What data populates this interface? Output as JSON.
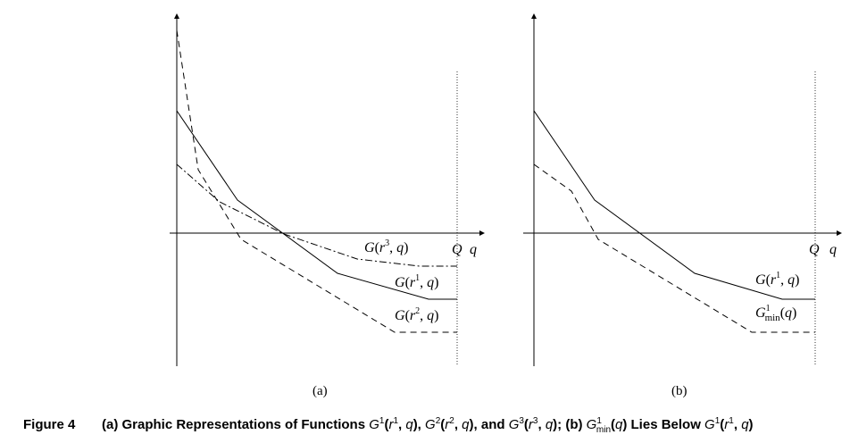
{
  "panels": [
    {
      "id": "a",
      "caption": "(a)",
      "axis_labels": {
        "q": "q",
        "Q": "Q"
      },
      "curve_labels": [
        {
          "key": "g3",
          "text": "G(r³, q)"
        },
        {
          "key": "g1",
          "text": "G(r¹, q)"
        },
        {
          "key": "g2",
          "text": "G(r², q)"
        }
      ]
    },
    {
      "id": "b",
      "caption": "(b)",
      "axis_labels": {
        "q": "q",
        "Q": "Q"
      },
      "curve_labels": [
        {
          "key": "g1",
          "text": "G(r¹, q)"
        },
        {
          "key": "gmin",
          "text": "G¹min(q)"
        }
      ]
    }
  ],
  "caption": {
    "label": "Figure 4",
    "text": "(a) Graphic Representations of Functions G¹(r¹, q), G²(r², q), and G³(r³, q); (b) G¹min(q) Lies Below G¹(r¹, q)"
  }
}
